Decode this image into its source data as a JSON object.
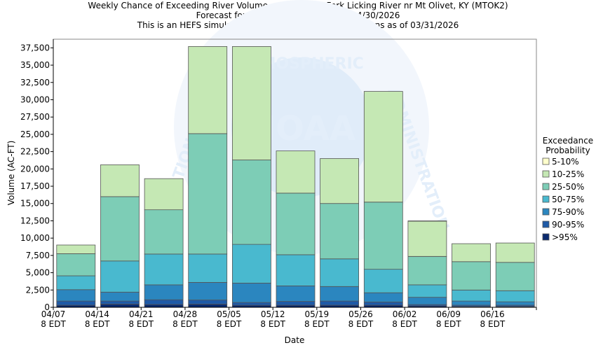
{
  "chart_data": {
    "type": "bar",
    "stacked": true,
    "title_lines": [
      "Weekly Chance of Exceeding River Volume on the North Fork Licking River nr Mt Olivet, KY (MTOK2)",
      "Forecast for the period 03/31/2026 - 04/30/2026",
      "This is an HEFS simulation based on the current conditions as of 03/31/2026"
    ],
    "xlabel": "Date",
    "ylabel": "Volume (AC-FT)",
    "ylim": [
      0,
      38750
    ],
    "yticks": [
      0,
      2500,
      5000,
      7500,
      10000,
      12500,
      15000,
      17500,
      20000,
      22500,
      25000,
      27500,
      30000,
      32500,
      35000,
      37500
    ],
    "ytick_labels": [
      "0",
      "2,500",
      "5,000",
      "7,500",
      "10,000",
      "12,500",
      "15,000",
      "17,500",
      "20,000",
      "22,500",
      "25,000",
      "27,500",
      "30,000",
      "32,500",
      "35,000",
      "37,500"
    ],
    "xtick_labels": [
      [
        "04/07",
        "8 EDT"
      ],
      [
        "04/14",
        "8 EDT"
      ],
      [
        "04/21",
        "8 EDT"
      ],
      [
        "04/28",
        "8 EDT"
      ],
      [
        "05/05",
        "8 EDT"
      ],
      [
        "05/12",
        "8 EDT"
      ],
      [
        "05/19",
        "8 EDT"
      ],
      [
        "05/26",
        "8 EDT"
      ],
      [
        "06/02",
        "8 EDT"
      ],
      [
        "06/09",
        "8 EDT"
      ],
      [
        "06/16",
        "8 EDT"
      ]
    ],
    "grid": false,
    "legend": {
      "title_lines": [
        "Exceedance",
        "Probability"
      ],
      "placement": "right"
    },
    "series": [
      {
        "name": ">95%",
        "color": "#0a2a6e",
        "values": [
          300,
          450,
          400,
          450,
          300,
          300,
          300,
          300,
          200,
          100,
          100
        ]
      },
      {
        "name": "90-95%",
        "color": "#1f5aa6",
        "values": [
          600,
          450,
          700,
          600,
          400,
          550,
          600,
          450,
          200,
          200,
          200
        ]
      },
      {
        "name": "75-90%",
        "color": "#2b86bf",
        "values": [
          1650,
          1300,
          2150,
          2550,
          2800,
          2250,
          2100,
          1350,
          1050,
          600,
          500
        ]
      },
      {
        "name": "50-75%",
        "color": "#49b9cf",
        "values": [
          2000,
          4500,
          4450,
          4100,
          5600,
          4500,
          4000,
          3400,
          1800,
          1600,
          1600
        ]
      },
      {
        "name": "25-50%",
        "color": "#7dcdb6",
        "values": [
          3200,
          9300,
          6400,
          17400,
          12200,
          8900,
          8000,
          9700,
          4100,
          4100,
          4100
        ]
      },
      {
        "name": "10-25%",
        "color": "#c5e8b4",
        "values": [
          1250,
          4600,
          4500,
          12600,
          16400,
          6100,
          6500,
          16000,
          5100,
          2600,
          2800
        ]
      },
      {
        "name": "5-10%",
        "color": "#ffffcc",
        "values": [
          0,
          0,
          0,
          0,
          0,
          0,
          0,
          0,
          0,
          0,
          0
        ]
      }
    ]
  }
}
